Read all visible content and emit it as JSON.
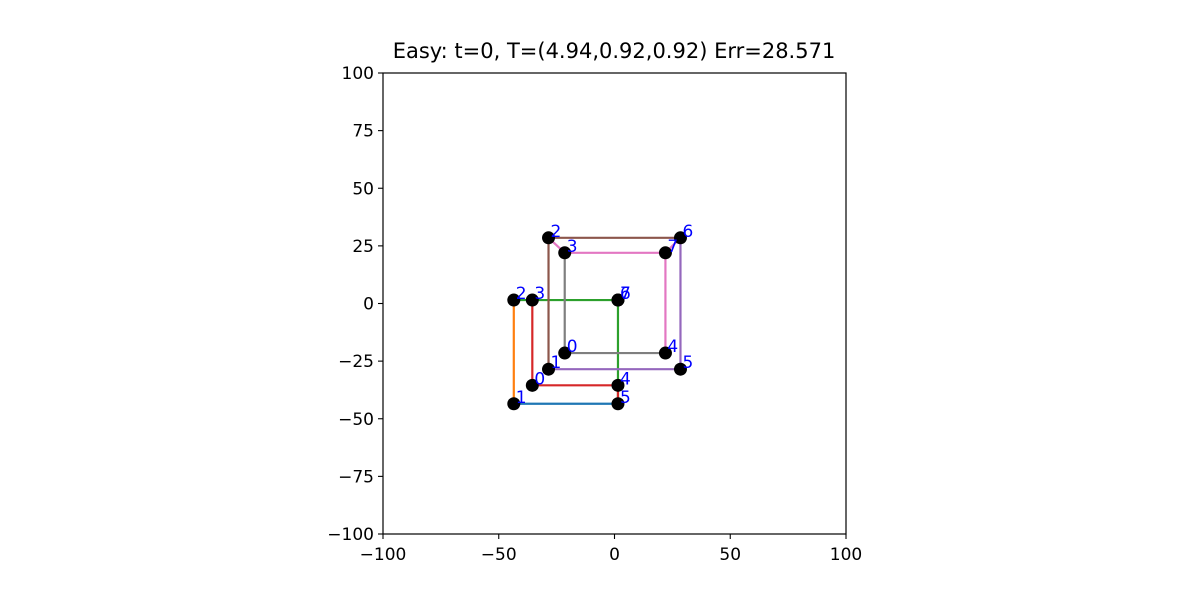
{
  "chart_data": {
    "type": "scatter",
    "title": "Easy: t=0, T=(4.94,0.92,0.92) Err=28.571",
    "xlabel": "",
    "ylabel": "",
    "xlim": [
      -100,
      100
    ],
    "ylim": [
      -100,
      100
    ],
    "xticks": [
      -100,
      -50,
      0,
      50,
      100
    ],
    "yticks": [
      -100,
      -75,
      -50,
      -25,
      0,
      25,
      50,
      75,
      100
    ],
    "xtick_labels": [
      "−100",
      "−50",
      "0",
      "50",
      "100"
    ],
    "ytick_labels": [
      "−100",
      "−75",
      "−50",
      "−25",
      "0",
      "25",
      "50",
      "75",
      "100"
    ],
    "grid": false,
    "marker_color": "#000000",
    "label_color": "#0000ff",
    "points": [
      {
        "label": "0",
        "x": -35.5,
        "y": -35.5
      },
      {
        "label": "1",
        "x": -43.5,
        "y": -43.5
      },
      {
        "label": "2",
        "x": -43.5,
        "y": 1.5
      },
      {
        "label": "3",
        "x": -35.5,
        "y": 1.5
      },
      {
        "label": "4",
        "x": 1.5,
        "y": -35.5
      },
      {
        "label": "5",
        "x": 1.5,
        "y": -43.5
      },
      {
        "label": "6",
        "x": 1.5,
        "y": 1.5
      },
      {
        "label": "7",
        "x": 1.5,
        "y": 1.5
      },
      {
        "label": "0",
        "x": -21.5,
        "y": -21.5
      },
      {
        "label": "1",
        "x": -28.5,
        "y": -28.5
      },
      {
        "label": "2",
        "x": -28.5,
        "y": 28.5
      },
      {
        "label": "3",
        "x": -21.5,
        "y": 22.0
      },
      {
        "label": "4",
        "x": 22.0,
        "y": -21.5
      },
      {
        "label": "5",
        "x": 28.5,
        "y": -28.5
      },
      {
        "label": "6",
        "x": 28.5,
        "y": 28.5
      },
      {
        "label": "7",
        "x": 22.0,
        "y": 22.0
      }
    ],
    "segments": [
      {
        "color": "#1f77b4",
        "x1": -43.5,
        "y1": -43.5,
        "x2": 1.5,
        "y2": -43.5
      },
      {
        "color": "#ff7f0e",
        "x1": -43.5,
        "y1": -43.5,
        "x2": -43.5,
        "y2": 1.5
      },
      {
        "color": "#2ca02c",
        "x1": -43.5,
        "y1": 1.5,
        "x2": 1.5,
        "y2": 1.5
      },
      {
        "color": "#2ca02c",
        "x1": 1.5,
        "y1": 1.5,
        "x2": 1.5,
        "y2": -43.5
      },
      {
        "color": "#d62728",
        "x1": -35.5,
        "y1": -35.5,
        "x2": 1.5,
        "y2": -35.5
      },
      {
        "color": "#d62728",
        "x1": -35.5,
        "y1": -35.5,
        "x2": -35.5,
        "y2": 1.5
      },
      {
        "color": "#d62728",
        "x1": 1.5,
        "y1": -35.5,
        "x2": 1.5,
        "y2": -43.5
      },
      {
        "color": "#9467bd",
        "x1": -28.5,
        "y1": -28.5,
        "x2": 28.5,
        "y2": -28.5
      },
      {
        "color": "#9467bd",
        "x1": 28.5,
        "y1": -28.5,
        "x2": 28.5,
        "y2": 28.5
      },
      {
        "color": "#8c564b",
        "x1": -28.5,
        "y1": -28.5,
        "x2": -28.5,
        "y2": 28.5
      },
      {
        "color": "#8c564b",
        "x1": -28.5,
        "y1": 28.5,
        "x2": 28.5,
        "y2": 28.5
      },
      {
        "color": "#e377c2",
        "x1": -28.5,
        "y1": 28.5,
        "x2": -21.5,
        "y2": 22.0
      },
      {
        "color": "#e377c2",
        "x1": -21.5,
        "y1": 22.0,
        "x2": 22.0,
        "y2": 22.0
      },
      {
        "color": "#e377c2",
        "x1": 22.0,
        "y1": 22.0,
        "x2": 22.0,
        "y2": -21.5
      },
      {
        "color": "#e377c2",
        "x1": 22.0,
        "y1": 22.0,
        "x2": 28.5,
        "y2": 28.5
      },
      {
        "color": "#7f7f7f",
        "x1": -21.5,
        "y1": -21.5,
        "x2": 22.0,
        "y2": -21.5
      },
      {
        "color": "#7f7f7f",
        "x1": -21.5,
        "y1": -21.5,
        "x2": -21.5,
        "y2": 22.0
      }
    ]
  }
}
